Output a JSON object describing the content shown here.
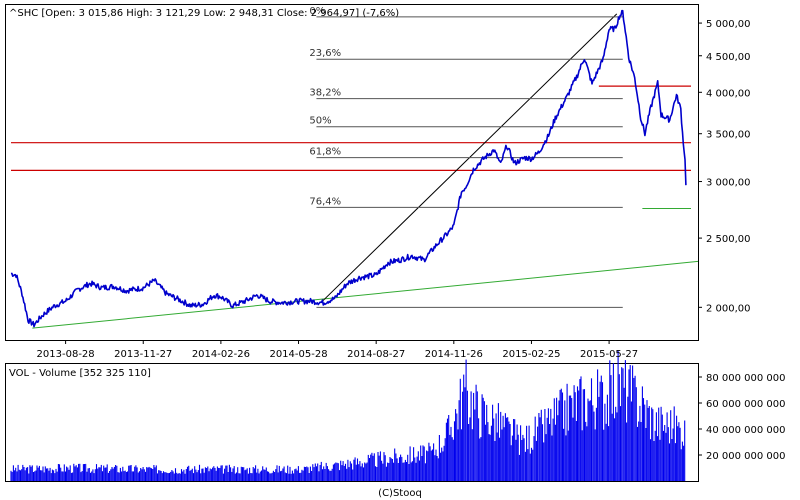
{
  "chart_data": [
    {
      "type": "line",
      "header": "^SHC [Open: 3 015,86  High: 3 121,29  Low: 2 948,31  Close: 2 964,97] (-7,6%)",
      "scale": "log",
      "ylim": [
        1800,
        5300
      ],
      "y_ticks": [
        "5 000,00",
        "4 500,00",
        "4 000,00",
        "3 500,00",
        "3 000,00",
        "2 500,00",
        "2 000,00"
      ],
      "y_tick_values": [
        5000,
        4500,
        4000,
        3500,
        3000,
        2500,
        2000
      ],
      "x_ticks": [
        "2013-08-28",
        "2013-11-27",
        "2014-02-26",
        "2014-05-28",
        "2014-08-27",
        "2014-11-26",
        "2015-02-25",
        "2015-05-27"
      ],
      "x_range": [
        "2013-06-25",
        "2015-08-31"
      ],
      "series": [
        {
          "color": "#0000cc",
          "points": [
            [
              "2013-06-25",
              2230
            ],
            [
              "2013-07-01",
              2220
            ],
            [
              "2013-07-08",
              2090
            ],
            [
              "2013-07-15",
              1920
            ],
            [
              "2013-07-22",
              1890
            ],
            [
              "2013-08-01",
              1950
            ],
            [
              "2013-08-15",
              2010
            ],
            [
              "2013-08-28",
              2040
            ],
            [
              "2013-09-12",
              2120
            ],
            [
              "2013-09-26",
              2160
            ],
            [
              "2013-10-10",
              2130
            ],
            [
              "2013-10-24",
              2140
            ],
            [
              "2013-11-07",
              2110
            ],
            [
              "2013-11-27",
              2130
            ],
            [
              "2013-12-10",
              2180
            ],
            [
              "2013-12-24",
              2090
            ],
            [
              "2014-01-08",
              2050
            ],
            [
              "2014-01-22",
              2010
            ],
            [
              "2014-02-05",
              2020
            ],
            [
              "2014-02-18",
              2080
            ],
            [
              "2014-02-26",
              2070
            ],
            [
              "2014-03-12",
              2010
            ],
            [
              "2014-03-26",
              2040
            ],
            [
              "2014-04-10",
              2080
            ],
            [
              "2014-04-24",
              2040
            ],
            [
              "2014-05-08",
              2030
            ],
            [
              "2014-05-28",
              2040
            ],
            [
              "2014-06-12",
              2040
            ],
            [
              "2014-06-26",
              2030
            ],
            [
              "2014-07-10",
              2060
            ],
            [
              "2014-07-24",
              2160
            ],
            [
              "2014-08-07",
              2200
            ],
            [
              "2014-08-27",
              2220
            ],
            [
              "2014-09-10",
              2310
            ],
            [
              "2014-09-24",
              2330
            ],
            [
              "2014-10-08",
              2360
            ],
            [
              "2014-10-22",
              2330
            ],
            [
              "2014-11-05",
              2440
            ],
            [
              "2014-11-19",
              2540
            ],
            [
              "2014-11-26",
              2600
            ],
            [
              "2014-12-05",
              2900
            ],
            [
              "2014-12-10",
              2950
            ],
            [
              "2014-12-19",
              3120
            ],
            [
              "2014-12-31",
              3230
            ],
            [
              "2015-01-12",
              3320
            ],
            [
              "2015-01-20",
              3170
            ],
            [
              "2015-01-27",
              3370
            ],
            [
              "2015-02-05",
              3180
            ],
            [
              "2015-02-17",
              3240
            ],
            [
              "2015-02-25",
              3230
            ],
            [
              "2015-03-06",
              3300
            ],
            [
              "2015-03-17",
              3480
            ],
            [
              "2015-03-25",
              3680
            ],
            [
              "2015-04-08",
              3950
            ],
            [
              "2015-04-20",
              4230
            ],
            [
              "2015-04-28",
              4470
            ],
            [
              "2015-05-07",
              4110
            ],
            [
              "2015-05-20",
              4450
            ],
            [
              "2015-05-27",
              4900
            ],
            [
              "2015-06-03",
              4910
            ],
            [
              "2015-06-08",
              5110
            ],
            [
              "2015-06-12",
              5180
            ],
            [
              "2015-06-19",
              4480
            ],
            [
              "2015-06-26",
              4190
            ],
            [
              "2015-07-03",
              3690
            ],
            [
              "2015-07-08",
              3500
            ],
            [
              "2015-07-15",
              3810
            ],
            [
              "2015-07-23",
              4120
            ],
            [
              "2015-07-27",
              3720
            ],
            [
              "2015-08-06",
              3660
            ],
            [
              "2015-08-14",
              3960
            ],
            [
              "2015-08-19",
              3790
            ],
            [
              "2015-08-21",
              3510
            ],
            [
              "2015-08-24",
              3210
            ],
            [
              "2015-08-25",
              2965
            ]
          ]
        }
      ],
      "fibonacci": {
        "color": "#555555",
        "levels": [
          {
            "label": "0%",
            "value": 5100
          },
          {
            "label": "23,6%",
            "value": 4450
          },
          {
            "label": "38,2%",
            "value": 3920
          },
          {
            "label": "50%",
            "value": 3580
          },
          {
            "label": "61,8%",
            "value": 3240
          },
          {
            "label": "76,4%",
            "value": 2760
          },
          {
            "label": "",
            "value": 2000
          }
        ]
      },
      "lines": [
        {
          "color": "#cc0000",
          "from": [
            "2013-06-25",
            3400
          ],
          "to": [
            "2015-08-31",
            3400
          ]
        },
        {
          "color": "#cc0000",
          "from": [
            "2013-06-25",
            3110
          ],
          "to": [
            "2015-08-31",
            3110
          ]
        },
        {
          "color": "#cc0000",
          "from": [
            "2015-05-15",
            4080
          ],
          "to": [
            "2015-08-31",
            4080
          ]
        },
        {
          "color": "#33aa33",
          "from": [
            "2013-07-20",
            1870
          ],
          "to": [
            "2015-09-25",
            2330
          ]
        },
        {
          "color": "#33aa33",
          "from": [
            "2015-07-05",
            2750
          ],
          "to": [
            "2015-08-31",
            2750
          ]
        },
        {
          "color": "#000000",
          "from": [
            "2014-06-25",
            2040
          ],
          "to": [
            "2015-06-05",
            5150
          ]
        }
      ]
    },
    {
      "type": "bar",
      "header": "VOL - Volume [352 325 110]",
      "ylim": [
        0,
        90000000000
      ],
      "y_ticks": [
        "80 000 000 000",
        "60 000 000 000",
        "40 000 000 000",
        "20 000 000 000"
      ],
      "y_tick_values": [
        80000000000,
        60000000000,
        40000000000,
        20000000000
      ],
      "color": "#0000ee",
      "x_range": [
        "2013-06-25",
        "2015-08-31"
      ],
      "volume_profile_billions": [
        [
          "2013-06-25",
          10
        ],
        [
          "2013-09-01",
          11
        ],
        [
          "2013-12-01",
          10
        ],
        [
          "2014-03-01",
          10
        ],
        [
          "2014-06-01",
          10
        ],
        [
          "2014-07-15",
          14
        ],
        [
          "2014-09-15",
          20
        ],
        [
          "2014-11-01",
          24
        ],
        [
          "2014-11-20",
          42
        ],
        [
          "2014-12-09",
          78
        ],
        [
          "2014-12-25",
          60
        ],
        [
          "2015-01-20",
          48
        ],
        [
          "2015-02-15",
          34
        ],
        [
          "2015-03-10",
          45
        ],
        [
          "2015-04-01",
          58
        ],
        [
          "2015-04-20",
          68
        ],
        [
          "2015-05-05",
          70
        ],
        [
          "2015-05-25",
          72
        ],
        [
          "2015-06-08",
          84
        ],
        [
          "2015-06-25",
          72
        ],
        [
          "2015-07-05",
          65
        ],
        [
          "2015-07-20",
          50
        ],
        [
          "2015-08-10",
          48
        ],
        [
          "2015-08-25",
          42
        ]
      ]
    }
  ],
  "footer": "(C)Stooq"
}
